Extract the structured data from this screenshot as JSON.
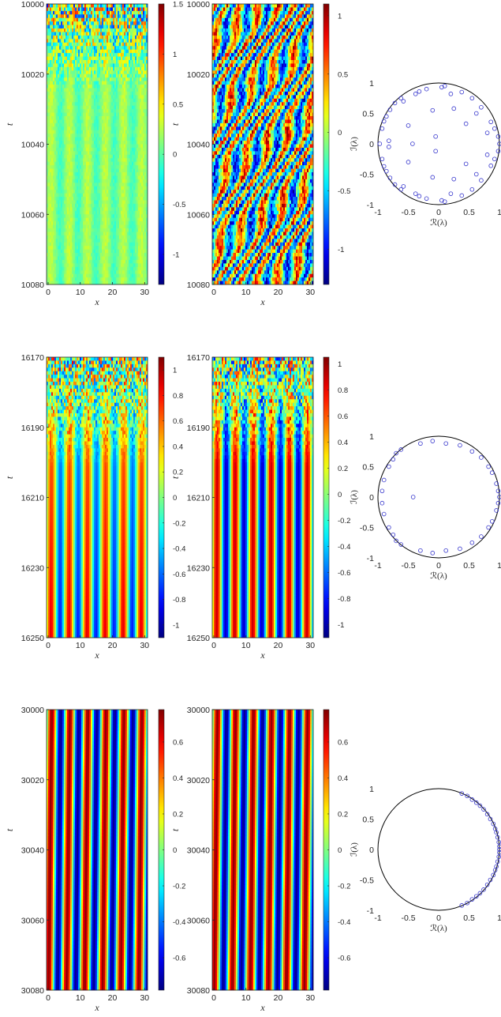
{
  "figure": {
    "colormap": "jet",
    "rows": [
      {
        "t_range": [
          10000,
          10080
        ],
        "t_ticks": [
          "10000",
          "10020",
          "10040",
          "10060",
          "10080"
        ],
        "x_ticks": [
          "0",
          "10",
          "20",
          "30"
        ],
        "left_colorbar": {
          "range": [
            -1.3,
            1.5
          ],
          "ticks": [
            "1.5",
            "1",
            "0.5",
            "0",
            "-0.5",
            "-1"
          ]
        },
        "right_colorbar": {
          "range": [
            -1.3,
            1.1
          ],
          "ticks": [
            "1",
            "0.5",
            "0",
            "-0.5",
            "-1"
          ]
        },
        "eigen": {
          "x_ticks": [
            "-1",
            "-0.5",
            "0",
            "0.5",
            "1"
          ],
          "y_ticks": [
            "1",
            "0.5",
            "0",
            "-0.5",
            "-1"
          ],
          "xlabel": "ℛ(λ)",
          "ylabel": "ℐ(λ)"
        }
      },
      {
        "t_range": [
          16170,
          16250
        ],
        "t_ticks": [
          "16170",
          "16190",
          "16210",
          "16230",
          "16250"
        ],
        "x_ticks": [
          "0",
          "10",
          "20",
          "30"
        ],
        "left_colorbar": {
          "range": [
            -1.1,
            1.1
          ],
          "ticks": [
            "1",
            "0.8",
            "0.6",
            "0.4",
            "0.2",
            "0",
            "-0.2",
            "-0.4",
            "-0.6",
            "-0.8",
            "-1"
          ]
        },
        "right_colorbar": {
          "range": [
            -1.1,
            1.05
          ],
          "ticks": [
            "1",
            "0.8",
            "0.6",
            "0.4",
            "0.2",
            "0",
            "-0.2",
            "-0.4",
            "-0.6",
            "-0.8",
            "-1"
          ]
        },
        "eigen": {
          "x_ticks": [
            "-1",
            "-0.5",
            "0",
            "0.5",
            "1"
          ],
          "y_ticks": [
            "1",
            "0.5",
            "0",
            "-0.5",
            "-1"
          ],
          "xlabel": "ℛ(λ)",
          "ylabel": "ℐ(λ)"
        }
      },
      {
        "t_range": [
          30000,
          30080
        ],
        "t_ticks": [
          "30000",
          "30020",
          "30040",
          "30060",
          "30080"
        ],
        "x_ticks": [
          "0",
          "10",
          "20",
          "30"
        ],
        "left_colorbar": {
          "range": [
            -0.78,
            0.78
          ],
          "ticks": [
            "0.6",
            "0.4",
            "0.2",
            "0",
            "-0.2",
            "-0.4",
            "-0.6"
          ]
        },
        "right_colorbar": {
          "range": [
            -0.78,
            0.78
          ],
          "ticks": [
            "0.6",
            "0.4",
            "0.2",
            "0",
            "-0.2",
            "-0.4",
            "-0.6"
          ]
        },
        "eigen": {
          "x_ticks": [
            "-1",
            "-0.5",
            "0",
            "0.5",
            "1"
          ],
          "y_ticks": [
            "1",
            "0.5",
            "0",
            "-0.5",
            "-1"
          ],
          "xlabel": "ℛ(λ)",
          "ylabel": "ℐ(λ)"
        }
      }
    ],
    "xlabel": "x",
    "ylabel": "t",
    "colors": {
      "axis": "#262626",
      "eig_marker": "#3333cc",
      "circle": "#000000"
    }
  },
  "chart_data": [
    {
      "type": "scatter",
      "name": "",
      "xlim": [
        -1,
        1
      ],
      "ylim": [
        -1,
        1
      ],
      "unit_circle": true,
      "points": [
        [
          -0.97,
          0.0
        ],
        [
          -0.93,
          0.25
        ],
        [
          -0.93,
          -0.25
        ],
        [
          -0.9,
          0.37
        ],
        [
          -0.9,
          -0.37
        ],
        [
          -0.86,
          0.45
        ],
        [
          -0.86,
          -0.45
        ],
        [
          -0.82,
          0.05
        ],
        [
          -0.82,
          -0.05
        ],
        [
          -0.8,
          0.56
        ],
        [
          -0.8,
          -0.56
        ],
        [
          -0.72,
          0.67
        ],
        [
          -0.72,
          -0.67
        ],
        [
          -0.62,
          0.75
        ],
        [
          -0.62,
          -0.75
        ],
        [
          -0.58,
          0.7
        ],
        [
          -0.58,
          -0.7
        ],
        [
          -0.5,
          0.3
        ],
        [
          -0.5,
          -0.3
        ],
        [
          -0.43,
          0.0
        ],
        [
          -0.38,
          0.82
        ],
        [
          -0.38,
          -0.82
        ],
        [
          -0.32,
          0.86
        ],
        [
          -0.32,
          -0.86
        ],
        [
          -0.2,
          0.9
        ],
        [
          -0.2,
          -0.9
        ],
        [
          -0.1,
          0.55
        ],
        [
          -0.1,
          -0.55
        ],
        [
          -0.05,
          0.12
        ],
        [
          -0.05,
          -0.12
        ],
        [
          0.05,
          0.93
        ],
        [
          0.05,
          -0.93
        ],
        [
          0.1,
          0.95
        ],
        [
          0.1,
          -0.95
        ],
        [
          0.2,
          0.82
        ],
        [
          0.2,
          -0.82
        ],
        [
          0.25,
          0.58
        ],
        [
          0.25,
          -0.58
        ],
        [
          0.38,
          0.85
        ],
        [
          0.38,
          -0.85
        ],
        [
          0.45,
          0.33
        ],
        [
          0.45,
          -0.33
        ],
        [
          0.55,
          0.75
        ],
        [
          0.55,
          -0.75
        ],
        [
          0.62,
          0.5
        ],
        [
          0.62,
          -0.5
        ],
        [
          0.7,
          0.6
        ],
        [
          0.7,
          -0.6
        ],
        [
          0.8,
          0.18
        ],
        [
          0.8,
          -0.18
        ],
        [
          0.86,
          0.36
        ],
        [
          0.86,
          -0.36
        ],
        [
          0.92,
          0.25
        ],
        [
          0.92,
          -0.25
        ],
        [
          0.98,
          0.12
        ],
        [
          0.98,
          -0.12
        ],
        [
          1.0,
          0.0
        ]
      ]
    },
    {
      "type": "scatter",
      "name": "",
      "xlim": [
        -1,
        1
      ],
      "ylim": [
        -1,
        1
      ],
      "unit_circle": true,
      "points": [
        [
          -0.93,
          0.1
        ],
        [
          -0.93,
          -0.1
        ],
        [
          -0.9,
          0.28
        ],
        [
          -0.9,
          -0.28
        ],
        [
          -0.82,
          0.5
        ],
        [
          -0.82,
          -0.5
        ],
        [
          -0.75,
          0.62
        ],
        [
          -0.75,
          -0.62
        ],
        [
          -0.7,
          0.72
        ],
        [
          -0.7,
          -0.72
        ],
        [
          -0.62,
          0.78
        ],
        [
          -0.62,
          -0.78
        ],
        [
          -0.42,
          0.0
        ],
        [
          -0.3,
          0.88
        ],
        [
          -0.3,
          -0.88
        ],
        [
          -0.1,
          0.92
        ],
        [
          -0.1,
          -0.92
        ],
        [
          0.12,
          0.88
        ],
        [
          0.12,
          -0.88
        ],
        [
          0.35,
          0.85
        ],
        [
          0.35,
          -0.85
        ],
        [
          0.55,
          0.75
        ],
        [
          0.55,
          -0.75
        ],
        [
          0.7,
          0.65
        ],
        [
          0.7,
          -0.65
        ],
        [
          0.82,
          0.5
        ],
        [
          0.82,
          -0.5
        ],
        [
          0.88,
          0.4
        ],
        [
          0.88,
          -0.4
        ],
        [
          0.95,
          0.22
        ],
        [
          0.95,
          -0.22
        ],
        [
          0.98,
          0.1
        ],
        [
          0.98,
          -0.1
        ],
        [
          1.0,
          0.0
        ]
      ]
    },
    {
      "type": "scatter",
      "name": "",
      "xlim": [
        -1,
        1
      ],
      "ylim": [
        -1,
        1
      ],
      "unit_circle": true,
      "points": [
        [
          0.38,
          0.92
        ],
        [
          0.38,
          -0.92
        ],
        [
          0.47,
          0.88
        ],
        [
          0.47,
          -0.88
        ],
        [
          0.55,
          0.82
        ],
        [
          0.55,
          -0.82
        ],
        [
          0.62,
          0.77
        ],
        [
          0.62,
          -0.77
        ],
        [
          0.68,
          0.72
        ],
        [
          0.68,
          -0.72
        ],
        [
          0.74,
          0.66
        ],
        [
          0.74,
          -0.66
        ],
        [
          0.8,
          0.58
        ],
        [
          0.8,
          -0.58
        ],
        [
          0.85,
          0.5
        ],
        [
          0.85,
          -0.5
        ],
        [
          0.9,
          0.42
        ],
        [
          0.9,
          -0.42
        ],
        [
          0.93,
          0.34
        ],
        [
          0.93,
          -0.34
        ],
        [
          0.95,
          0.28
        ],
        [
          0.95,
          -0.28
        ],
        [
          0.97,
          0.2
        ],
        [
          0.97,
          -0.2
        ],
        [
          0.99,
          0.12
        ],
        [
          0.99,
          -0.12
        ],
        [
          1.0,
          0.05
        ],
        [
          1.0,
          -0.05
        ],
        [
          1.0,
          0.0
        ]
      ]
    }
  ]
}
